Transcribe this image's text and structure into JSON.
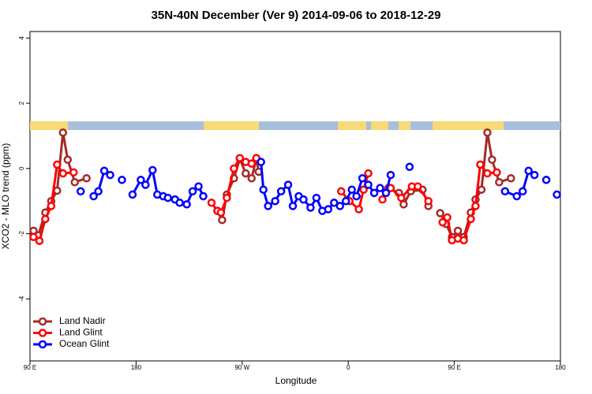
{
  "chart_data": {
    "type": "line",
    "title": "35N-40N December (Ver 9)   2014-09-06 to 2018-12-29",
    "x_label": "Longitude",
    "y_label": "XCO2 - MLO trend (ppm)",
    "xlim": [
      90,
      540
    ],
    "ylim": [
      -5.9,
      4.2
    ],
    "xticks": [
      {
        "value": 90,
        "label": "90 E"
      },
      180,
      {
        "value": 270,
        "label": "90 W"
      },
      {
        "value": 360,
        "label": "0"
      },
      {
        "value": 450,
        "label": "90 E"
      },
      {
        "value": 540,
        "label": "180"
      }
    ],
    "yticks": [
      -4,
      -2,
      0,
      2,
      4
    ],
    "legend": "bottom-left",
    "series": [
      {
        "name": "Land Nadir",
        "color": "#a52a2a",
        "x": [
          93,
          97,
          103,
          108,
          113,
          118,
          122,
          128,
          138,
          null,
          249,
          253,
          257,
          263,
          268,
          273,
          278,
          282,
          284,
          null,
          394,
          403,
          407,
          413,
          423,
          428,
          null,
          438,
          443,
          448,
          453,
          458,
          464,
          468,
          473,
          478,
          482,
          488,
          498
        ],
        "values": [
          -1.91,
          -2.05,
          -1.35,
          -1.0,
          -0.68,
          1.1,
          0.27,
          -0.42,
          -0.3,
          null,
          -1.3,
          -1.58,
          -0.8,
          -0.3,
          0.3,
          -0.15,
          -0.3,
          0.3,
          -0.1,
          null,
          -0.6,
          -0.75,
          -1.1,
          -0.7,
          -0.65,
          -1.15,
          null,
          -1.37,
          -1.7,
          -2.1,
          -1.91,
          -2.1,
          -1.35,
          -0.95,
          -0.65,
          1.1,
          0.27,
          -0.42,
          -0.3
        ]
      },
      {
        "name": "Land Glint",
        "color": "#ff0000",
        "x": [
          93,
          98,
          103,
          108,
          113,
          118,
          127,
          null,
          244,
          249,
          252,
          257,
          263,
          268,
          273,
          278,
          282,
          null,
          354,
          361,
          369,
          373,
          377,
          null,
          389,
          396,
          405,
          414,
          419,
          428,
          null,
          440,
          444,
          448,
          453,
          458,
          464,
          468,
          472,
          478,
          486
        ],
        "values": [
          -2.1,
          -2.22,
          -1.55,
          -1.15,
          0.12,
          -0.15,
          -0.12,
          null,
          -1.05,
          -1.3,
          -1.35,
          -0.9,
          0.0,
          0.32,
          0.2,
          0.15,
          0.32,
          null,
          -0.7,
          -1.0,
          -1.25,
          -0.65,
          -0.15,
          null,
          -0.95,
          -0.6,
          -0.9,
          -0.55,
          -0.55,
          -1.0,
          null,
          -1.65,
          -1.5,
          -2.2,
          -2.15,
          -2.2,
          -1.55,
          -1.15,
          0.12,
          -0.15,
          -0.12
        ]
      },
      {
        "name": "Ocean Glint",
        "color": "#0000ff",
        "x": [
          133,
          null,
          144,
          148,
          153,
          158,
          null,
          168,
          null,
          177,
          184,
          188,
          194,
          198,
          203,
          207,
          213,
          217,
          223,
          228,
          233,
          237,
          null,
          286,
          288,
          292,
          298,
          303,
          309,
          313,
          318,
          322,
          328,
          333,
          338,
          343,
          348,
          353,
          358,
          363,
          367,
          372,
          377,
          382,
          387,
          392,
          396,
          null,
          412,
          null,
          493,
          503,
          508,
          513,
          518,
          null,
          528,
          null,
          537
        ],
        "values": [
          -0.7,
          null,
          -0.85,
          -0.7,
          -0.07,
          -0.2,
          null,
          -0.35,
          null,
          -0.8,
          -0.35,
          -0.5,
          -0.05,
          -0.8,
          -0.85,
          -0.9,
          -0.95,
          -1.05,
          -1.1,
          -0.7,
          -0.55,
          -0.85,
          null,
          0.2,
          -0.65,
          -1.15,
          -1.0,
          -0.7,
          -0.5,
          -1.15,
          -0.85,
          -0.95,
          -1.2,
          -0.9,
          -1.3,
          -1.25,
          -1.05,
          -1.15,
          -1.0,
          -0.65,
          -0.85,
          -0.3,
          -0.5,
          -0.75,
          -0.6,
          -0.75,
          -0.2,
          null,
          0.05,
          null,
          -0.7,
          -0.85,
          -0.7,
          -0.07,
          -0.2,
          null,
          -0.35,
          null,
          -0.8
        ]
      }
    ]
  }
}
